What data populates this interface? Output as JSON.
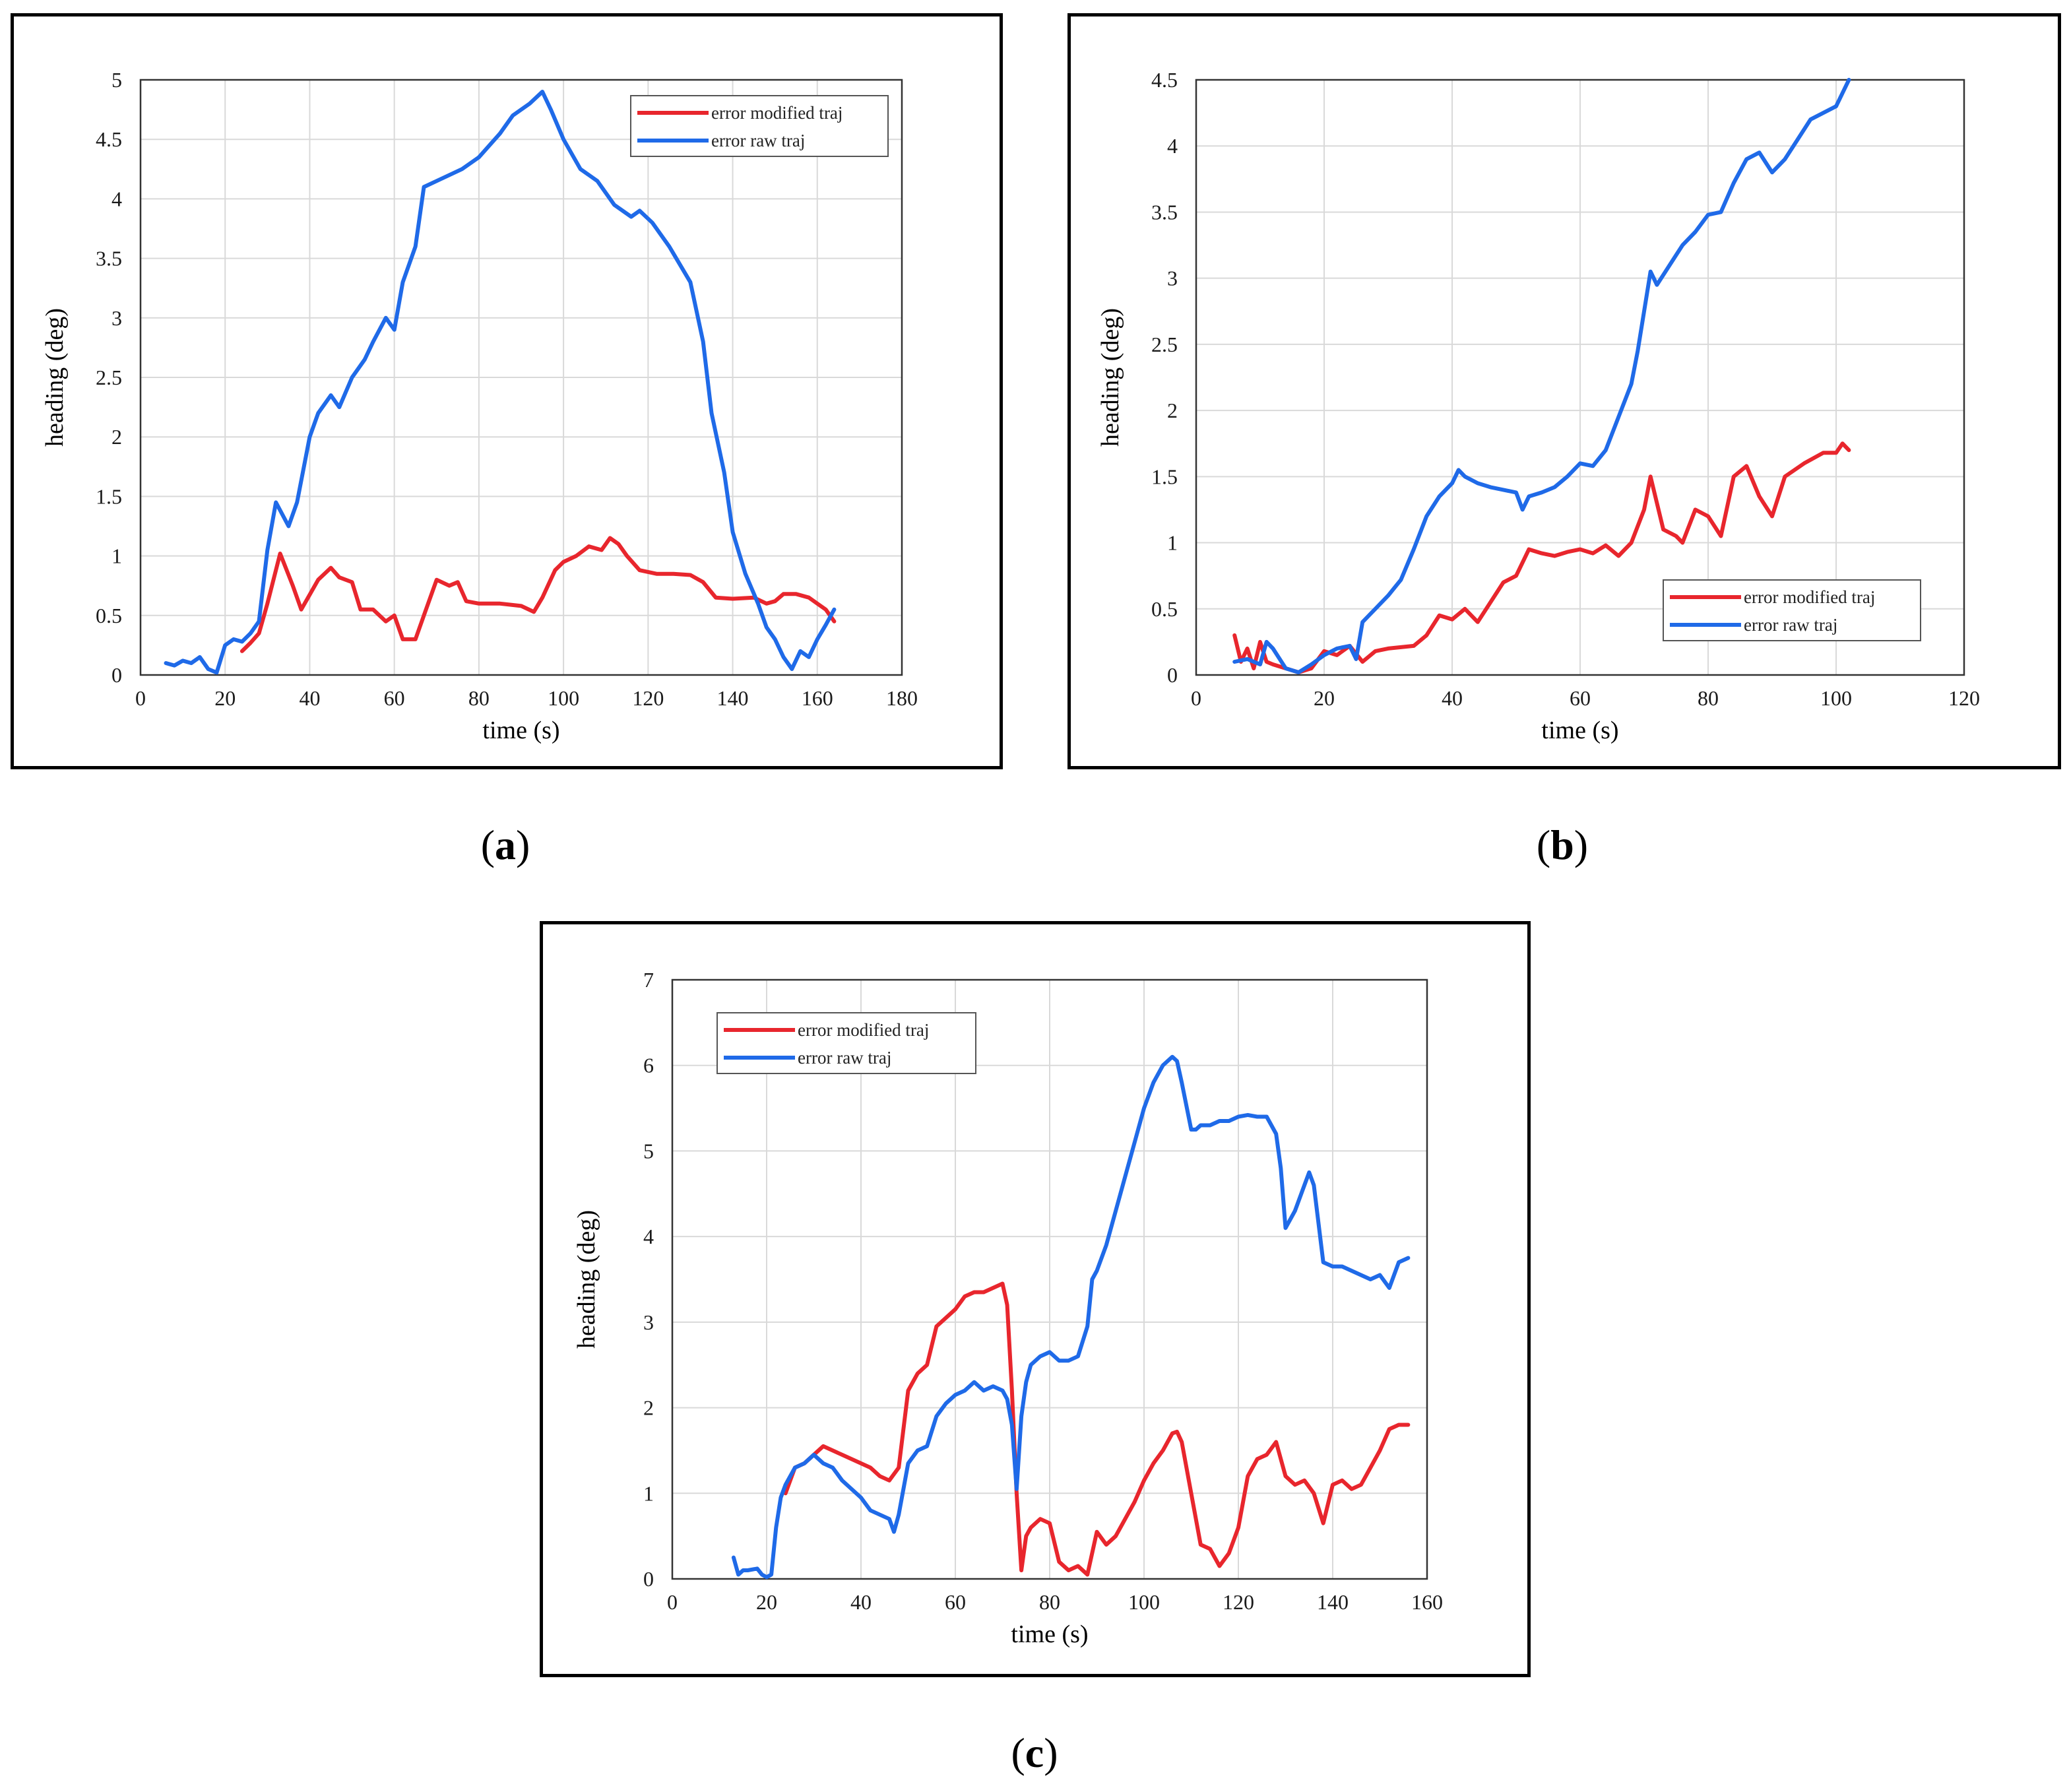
{
  "colors": {
    "modified": "#e8262d",
    "raw": "#1f6ae8"
  },
  "chart_data": [
    {
      "type": "line",
      "panel": "a",
      "caption_pre": "(",
      "caption_letter": "a",
      "caption_post": ")",
      "xlabel": "time (s)",
      "ylabel": "heading (deg)",
      "xlim": [
        0,
        180
      ],
      "ylim": [
        0,
        5
      ],
      "xticks": [
        0,
        20,
        40,
        60,
        80,
        100,
        120,
        140,
        160,
        180
      ],
      "yticks": [
        0,
        0.5,
        1,
        1.5,
        2,
        2.5,
        3,
        3.5,
        4,
        4.5,
        5
      ],
      "legend_position": "top-right",
      "series": [
        {
          "name": "error modified traj",
          "color_key": "modified",
          "x": [
            24,
            26,
            28,
            30,
            33,
            36,
            38,
            42,
            45,
            47,
            50,
            52,
            55,
            58,
            60,
            62,
            65,
            67,
            70,
            73,
            75,
            77,
            80,
            85,
            90,
            93,
            95,
            98,
            100,
            103,
            106,
            109,
            111,
            113,
            115,
            118,
            122,
            126,
            130,
            133,
            136,
            140,
            145,
            148,
            150,
            152,
            155,
            158,
            160,
            162,
            164
          ],
          "y": [
            0.2,
            0.27,
            0.35,
            0.6,
            1.02,
            0.75,
            0.55,
            0.8,
            0.9,
            0.82,
            0.78,
            0.55,
            0.55,
            0.45,
            0.5,
            0.3,
            0.3,
            0.5,
            0.8,
            0.75,
            0.78,
            0.62,
            0.6,
            0.6,
            0.58,
            0.53,
            0.65,
            0.88,
            0.95,
            1.0,
            1.08,
            1.05,
            1.15,
            1.1,
            1.0,
            0.88,
            0.85,
            0.85,
            0.84,
            0.78,
            0.65,
            0.64,
            0.65,
            0.6,
            0.62,
            0.68,
            0.68,
            0.65,
            0.6,
            0.55,
            0.45
          ]
        },
        {
          "name": "error raw traj",
          "color_key": "raw",
          "x": [
            6,
            8,
            10,
            12,
            14,
            16,
            18,
            20,
            22,
            24,
            26,
            28,
            30,
            32,
            35,
            37,
            40,
            42,
            45,
            47,
            50,
            53,
            55,
            58,
            60,
            62,
            65,
            67,
            70,
            73,
            76,
            80,
            85,
            88,
            92,
            95,
            97,
            100,
            104,
            108,
            112,
            116,
            118,
            121,
            125,
            130,
            133,
            135,
            138,
            140,
            143,
            146,
            148,
            150,
            152,
            154,
            156,
            158,
            160,
            162,
            164
          ],
          "y": [
            0.1,
            0.08,
            0.12,
            0.1,
            0.15,
            0.05,
            0.02,
            0.25,
            0.3,
            0.28,
            0.35,
            0.45,
            1.05,
            1.45,
            1.25,
            1.45,
            2.0,
            2.2,
            2.35,
            2.25,
            2.5,
            2.65,
            2.8,
            3.0,
            2.9,
            3.3,
            3.6,
            4.1,
            4.15,
            4.2,
            4.25,
            4.35,
            4.55,
            4.7,
            4.8,
            4.9,
            4.75,
            4.5,
            4.25,
            4.15,
            3.95,
            3.85,
            3.9,
            3.8,
            3.6,
            3.3,
            2.8,
            2.2,
            1.7,
            1.2,
            0.85,
            0.6,
            0.4,
            0.3,
            0.15,
            0.05,
            0.2,
            0.15,
            0.3,
            0.42,
            0.55
          ]
        }
      ]
    },
    {
      "type": "line",
      "panel": "b",
      "caption_pre": "(",
      "caption_letter": "b",
      "caption_post": ")",
      "xlabel": "time (s)",
      "ylabel": "heading (deg)",
      "xlim": [
        0,
        120
      ],
      "ylim": [
        0,
        4.5
      ],
      "xticks": [
        0,
        20,
        40,
        60,
        80,
        100,
        120
      ],
      "yticks": [
        0,
        0.5,
        1,
        1.5,
        2,
        2.5,
        3,
        3.5,
        4,
        4.5
      ],
      "legend_position": "bottom-right",
      "series": [
        {
          "name": "error modified traj",
          "color_key": "modified",
          "x": [
            6,
            7,
            8,
            9,
            10,
            11,
            12,
            14,
            16,
            18,
            20,
            22,
            24,
            26,
            28,
            30,
            34,
            36,
            38,
            40,
            42,
            44,
            46,
            48,
            50,
            52,
            54,
            56,
            58,
            60,
            62,
            64,
            66,
            68,
            70,
            71,
            72,
            73,
            75,
            76,
            78,
            80,
            82,
            84,
            86,
            88,
            90,
            92,
            95,
            98,
            100,
            101,
            102
          ],
          "y": [
            0.3,
            0.1,
            0.2,
            0.05,
            0.25,
            0.1,
            0.08,
            0.05,
            0.02,
            0.05,
            0.18,
            0.15,
            0.22,
            0.1,
            0.18,
            0.2,
            0.22,
            0.3,
            0.45,
            0.42,
            0.5,
            0.4,
            0.55,
            0.7,
            0.75,
            0.95,
            0.92,
            0.9,
            0.93,
            0.95,
            0.92,
            0.98,
            0.9,
            1.0,
            1.25,
            1.5,
            1.3,
            1.1,
            1.05,
            1.0,
            1.25,
            1.2,
            1.05,
            1.5,
            1.58,
            1.35,
            1.2,
            1.5,
            1.6,
            1.68,
            1.68,
            1.75,
            1.7
          ]
        },
        {
          "name": "error raw traj",
          "color_key": "raw",
          "x": [
            6,
            8,
            10,
            11,
            12,
            14,
            16,
            18,
            20,
            22,
            24,
            25,
            26,
            27,
            28,
            30,
            32,
            34,
            36,
            38,
            40,
            41,
            42,
            44,
            46,
            48,
            50,
            51,
            52,
            54,
            56,
            58,
            60,
            62,
            64,
            66,
            68,
            69,
            70,
            71,
            72,
            74,
            76,
            78,
            80,
            82,
            84,
            86,
            88,
            90,
            92,
            94,
            96,
            98,
            100,
            101,
            102
          ],
          "y": [
            0.1,
            0.12,
            0.08,
            0.25,
            0.2,
            0.05,
            0.02,
            0.08,
            0.15,
            0.2,
            0.22,
            0.12,
            0.4,
            0.45,
            0.5,
            0.6,
            0.72,
            0.95,
            1.2,
            1.35,
            1.45,
            1.55,
            1.5,
            1.45,
            1.42,
            1.4,
            1.38,
            1.25,
            1.35,
            1.38,
            1.42,
            1.5,
            1.6,
            1.58,
            1.7,
            1.95,
            2.2,
            2.45,
            2.75,
            3.05,
            2.95,
            3.1,
            3.25,
            3.35,
            3.48,
            3.5,
            3.72,
            3.9,
            3.95,
            3.8,
            3.9,
            4.05,
            4.2,
            4.25,
            4.3,
            4.4,
            4.5
          ]
        }
      ]
    },
    {
      "type": "line",
      "panel": "c",
      "caption_pre": "(",
      "caption_letter": "c",
      "caption_post": ")",
      "xlabel": "time (s)",
      "ylabel": "heading (deg)",
      "xlim": [
        0,
        160
      ],
      "ylim": [
        0,
        7
      ],
      "xticks": [
        0,
        20,
        40,
        60,
        80,
        100,
        120,
        140,
        160
      ],
      "yticks": [
        0,
        1,
        2,
        3,
        4,
        5,
        6,
        7
      ],
      "legend_position": "top-left",
      "series": [
        {
          "name": "error modified traj",
          "color_key": "modified",
          "x": [
            24,
            26,
            28,
            30,
            32,
            34,
            36,
            38,
            40,
            42,
            44,
            46,
            48,
            50,
            52,
            54,
            56,
            58,
            60,
            62,
            64,
            66,
            68,
            70,
            71,
            72,
            73,
            74,
            75,
            76,
            78,
            80,
            82,
            84,
            86,
            88,
            90,
            92,
            94,
            96,
            98,
            100,
            102,
            104,
            106,
            107,
            108,
            110,
            112,
            114,
            116,
            118,
            120,
            122,
            124,
            126,
            128,
            130,
            132,
            134,
            136,
            138,
            140,
            142,
            144,
            146,
            148,
            150,
            152,
            154,
            156
          ],
          "y": [
            1.0,
            1.3,
            1.35,
            1.45,
            1.55,
            1.5,
            1.45,
            1.4,
            1.35,
            1.3,
            1.2,
            1.15,
            1.3,
            2.2,
            2.4,
            2.5,
            2.95,
            3.05,
            3.15,
            3.3,
            3.35,
            3.35,
            3.4,
            3.45,
            3.2,
            2.2,
            1.0,
            0.1,
            0.5,
            0.6,
            0.7,
            0.65,
            0.2,
            0.1,
            0.15,
            0.05,
            0.55,
            0.4,
            0.5,
            0.7,
            0.9,
            1.15,
            1.35,
            1.5,
            1.7,
            1.72,
            1.6,
            1.0,
            0.4,
            0.35,
            0.15,
            0.3,
            0.6,
            1.2,
            1.4,
            1.45,
            1.6,
            1.2,
            1.1,
            1.15,
            1.0,
            0.65,
            1.1,
            1.15,
            1.05,
            1.1,
            1.3,
            1.5,
            1.75,
            1.8,
            1.8
          ]
        },
        {
          "name": "error raw traj",
          "color_key": "raw",
          "x": [
            13,
            14,
            15,
            16,
            18,
            19,
            20,
            21,
            22,
            23,
            24,
            26,
            28,
            30,
            32,
            34,
            36,
            38,
            40,
            42,
            44,
            46,
            47,
            48,
            50,
            52,
            54,
            56,
            58,
            60,
            62,
            64,
            66,
            68,
            70,
            71,
            72,
            73,
            74,
            75,
            76,
            78,
            80,
            82,
            84,
            86,
            88,
            89,
            90,
            92,
            94,
            96,
            98,
            100,
            102,
            104,
            106,
            107,
            108,
            110,
            111,
            112,
            114,
            116,
            118,
            120,
            122,
            124,
            126,
            128,
            129,
            130,
            132,
            134,
            135,
            136,
            138,
            140,
            142,
            144,
            146,
            148,
            150,
            152,
            154,
            156
          ],
          "y": [
            0.25,
            0.05,
            0.1,
            0.1,
            0.12,
            0.05,
            0.02,
            0.05,
            0.6,
            0.95,
            1.1,
            1.3,
            1.35,
            1.45,
            1.35,
            1.3,
            1.15,
            1.05,
            0.95,
            0.8,
            0.75,
            0.7,
            0.55,
            0.75,
            1.35,
            1.5,
            1.55,
            1.9,
            2.05,
            2.15,
            2.2,
            2.3,
            2.2,
            2.25,
            2.2,
            2.1,
            1.8,
            1.05,
            1.9,
            2.3,
            2.5,
            2.6,
            2.65,
            2.55,
            2.55,
            2.6,
            2.95,
            3.5,
            3.6,
            3.9,
            4.3,
            4.7,
            5.1,
            5.5,
            5.8,
            6.0,
            6.1,
            6.05,
            5.8,
            5.25,
            5.25,
            5.3,
            5.3,
            5.35,
            5.35,
            5.4,
            5.42,
            5.4,
            5.4,
            5.2,
            4.8,
            4.1,
            4.3,
            4.6,
            4.75,
            4.6,
            3.7,
            3.65,
            3.65,
            3.6,
            3.55,
            3.5,
            3.55,
            3.4,
            3.7,
            3.75
          ]
        }
      ]
    }
  ]
}
